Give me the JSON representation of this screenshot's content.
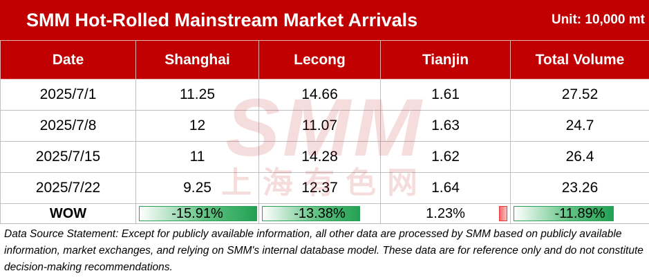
{
  "header": {
    "title": "SMM Hot-Rolled Mainstream Market Arrivals",
    "unit": "Unit: 10,000 mt"
  },
  "table": {
    "columns": [
      "Date",
      "Shanghai",
      "Lecong",
      "Tianjin",
      "Total Volume"
    ],
    "rows": [
      [
        "2025/7/1",
        "11.25",
        "14.66",
        "1.61",
        "27.52"
      ],
      [
        "2025/7/8",
        "12",
        "11.07",
        "1.63",
        "24.7"
      ],
      [
        "2025/7/15",
        "11",
        "14.28",
        "1.62",
        "26.4"
      ],
      [
        "2025/7/22",
        "9.25",
        "12.37",
        "1.64",
        "23.26"
      ]
    ],
    "wow": {
      "label": "WOW",
      "values": [
        "-15.91%",
        "-13.38%",
        "1.23%",
        "-11.89%"
      ],
      "numeric": [
        -15.91,
        -13.38,
        1.23,
        -11.89
      ]
    }
  },
  "watermark": {
    "logo": "SMM",
    "text": "上海有色网"
  },
  "footnote": "Data Source Statement: Except for publicly available information, all other data are processed by SMM based on publicly available information, market exchanges, and relying on SMM's internal database model. These data are for reference only and do not constitute decision-making recommendations.",
  "colors": {
    "header_red": "#c00000",
    "negative_bar": "#22a153",
    "positive_bar": "#f8696b"
  }
}
